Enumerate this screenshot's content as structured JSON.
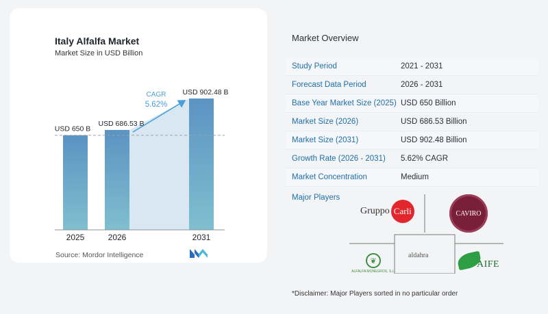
{
  "chart_data": {
    "type": "bar",
    "title": "Italy Alfalfa Market",
    "subtitle": "Market Size in USD Billion",
    "categories": [
      "2025",
      "2026",
      "2031"
    ],
    "values": [
      650,
      686.53,
      902.48
    ],
    "data_labels": [
      "USD 650 B",
      "USD 686.53 B",
      "USD 902.48 B"
    ],
    "cagr_label": "CAGR",
    "cagr_value": "5.62%",
    "reference_line_value": 650,
    "grid": false,
    "colors": {
      "bar_top": "#5b93c2",
      "bar_bottom": "#7fbfcf",
      "shade": "#d8e7f1",
      "arrow": "#4a9fd8",
      "cagr_text": "#4a9fd8"
    }
  },
  "source": "Source:  Mordor Intelligence",
  "overview": {
    "title": "Market Overview",
    "rows": [
      {
        "label": "Study Period",
        "value": "2021 - 2031"
      },
      {
        "label": "Forecast Data Period",
        "value": "2026 - 2031"
      },
      {
        "label": "Base Year Market Size (2025)",
        "value": "USD 650 Billion"
      },
      {
        "label": "Market Size (2026)",
        "value": "USD 686.53 Billion"
      },
      {
        "label": "Market Size (2031)",
        "value": "USD 902.48 Billion"
      },
      {
        "label": "Growth Rate (2026 - 2031)",
        "value": "5.62% CAGR"
      },
      {
        "label": "Market Concentration",
        "value": "Medium"
      }
    ],
    "players_label": "Major Players",
    "players": [
      {
        "name": "Gruppo",
        "badge": "Carli"
      },
      {
        "name": "CAVIRO"
      },
      {
        "name": "aldahra"
      },
      {
        "name": "ALFALFA MONEGROS, S.L."
      },
      {
        "name": "AIFE"
      }
    ]
  },
  "disclaimer": "*Disclaimer: Major Players sorted in no particular order",
  "accent_color": "#1f6fa8"
}
